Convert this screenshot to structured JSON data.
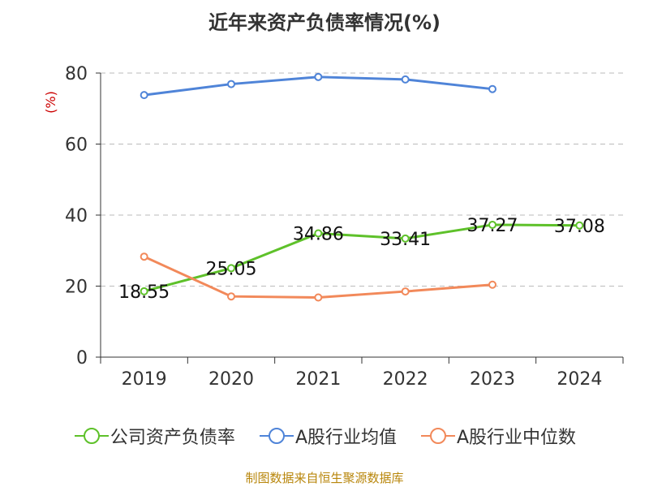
{
  "chart_data": {
    "type": "line",
    "title": "近年来资产负债率情况(%)",
    "ylabel": "(%)",
    "ylim": [
      0,
      80
    ],
    "yticks": [
      "0",
      "20",
      "40",
      "60",
      "80"
    ],
    "grid": true,
    "legend_position": "bottom",
    "categories": [
      "2019",
      "2020",
      "2021",
      "2022",
      "2023",
      "2024"
    ],
    "series": [
      {
        "name": "公司资产负债率",
        "color": "#5ec12a",
        "values": [
          18.55,
          25.05,
          34.86,
          33.41,
          37.27,
          37.08
        ],
        "labels": [
          "18.55",
          "25.05",
          "34.86",
          "33.41",
          "37.27",
          "37.08"
        ]
      },
      {
        "name": "A股行业均值",
        "color": "#4f84d8",
        "values": [
          73.8,
          76.9,
          78.9,
          78.2,
          75.5,
          null
        ]
      },
      {
        "name": "A股行业中位数",
        "color": "#f2895a",
        "values": [
          28.3,
          17.1,
          16.8,
          18.5,
          20.4,
          null
        ]
      }
    ]
  },
  "source": "制图数据来自恒生聚源数据库"
}
